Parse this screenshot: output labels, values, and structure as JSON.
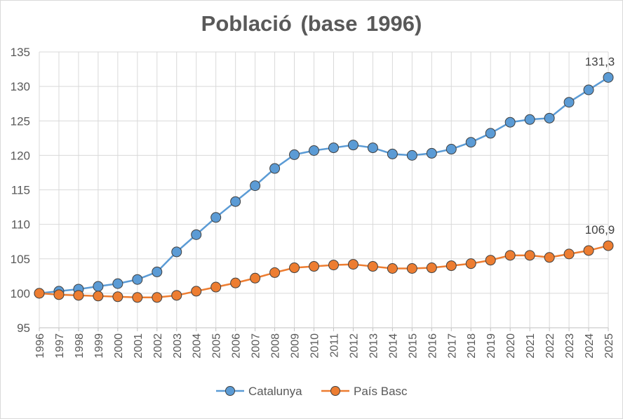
{
  "chart_data": {
    "type": "line",
    "title": "Població (base 1996)",
    "xlabel": "",
    "ylabel": "",
    "ylim": [
      95,
      135
    ],
    "yticks": [
      95,
      100,
      105,
      110,
      115,
      120,
      125,
      130,
      135
    ],
    "grid": true,
    "legend_position": "bottom",
    "categories": [
      "1996",
      "1997",
      "1998",
      "1999",
      "2000",
      "2001",
      "2002",
      "2003",
      "2004",
      "2005",
      "2006",
      "2007",
      "2008",
      "2009",
      "2010",
      "2011",
      "2012",
      "2013",
      "2014",
      "2015",
      "2016",
      "2017",
      "2018",
      "2019",
      "2020",
      "2021",
      "2022",
      "2023",
      "2024",
      "2025"
    ],
    "series": [
      {
        "name": "Catalunya",
        "color": "#5b9bd5",
        "marker_fill": "#5b9bd5",
        "values": [
          100.0,
          100.3,
          100.6,
          101.0,
          101.4,
          102.0,
          103.1,
          106.0,
          108.5,
          111.0,
          113.3,
          115.6,
          118.1,
          120.1,
          120.7,
          121.1,
          121.5,
          121.1,
          120.2,
          120.0,
          120.3,
          120.9,
          121.9,
          123.2,
          124.8,
          125.2,
          125.4,
          127.7,
          129.5,
          131.3
        ],
        "last_label": "131,3"
      },
      {
        "name": "País Basc",
        "color": "#ed7d31",
        "marker_fill": "#ed7d31",
        "values": [
          100.0,
          99.8,
          99.7,
          99.6,
          99.5,
          99.4,
          99.4,
          99.7,
          100.3,
          100.9,
          101.5,
          102.2,
          103.0,
          103.7,
          103.9,
          104.1,
          104.2,
          103.9,
          103.6,
          103.6,
          103.7,
          104.0,
          104.3,
          104.8,
          105.5,
          105.5,
          105.2,
          105.7,
          106.2,
          106.9
        ],
        "last_label": "106,9"
      }
    ]
  }
}
